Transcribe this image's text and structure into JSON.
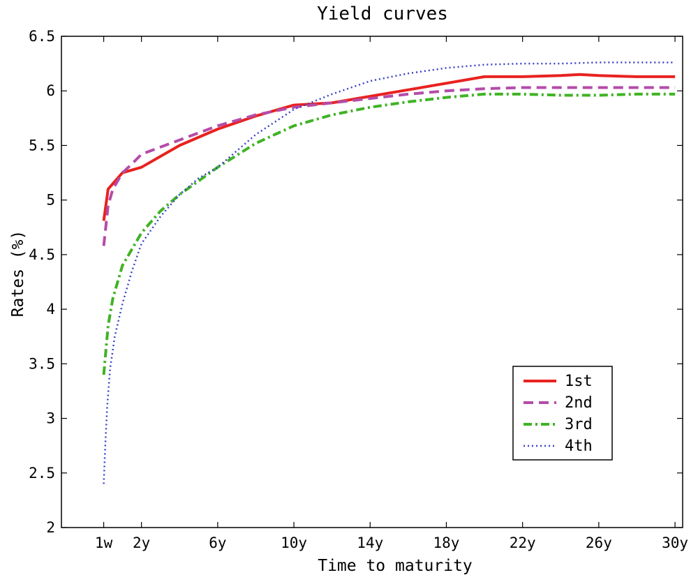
{
  "chart_data": {
    "type": "line",
    "title": "Yield curves",
    "xlabel": "Time to maturity",
    "ylabel": "Rates (%)",
    "xlim": [
      -2.2,
      30.4
    ],
    "ylim": [
      2,
      6.5
    ],
    "xticks": [
      {
        "value": 0.019,
        "label": "1w"
      },
      {
        "value": 2,
        "label": "2y"
      },
      {
        "value": 6,
        "label": "6y"
      },
      {
        "value": 10,
        "label": "10y"
      },
      {
        "value": 14,
        "label": "14y"
      },
      {
        "value": 18,
        "label": "18y"
      },
      {
        "value": 22,
        "label": "22y"
      },
      {
        "value": 26,
        "label": "26y"
      },
      {
        "value": 30,
        "label": "30y"
      }
    ],
    "yticks": [
      {
        "value": 2,
        "label": "2"
      },
      {
        "value": 2.5,
        "label": "2.5"
      },
      {
        "value": 3,
        "label": "3"
      },
      {
        "value": 3.5,
        "label": "3.5"
      },
      {
        "value": 4,
        "label": "4"
      },
      {
        "value": 4.5,
        "label": "4.5"
      },
      {
        "value": 5,
        "label": "5"
      },
      {
        "value": 5.5,
        "label": "5.5"
      },
      {
        "value": 6,
        "label": "6"
      },
      {
        "value": 6.5,
        "label": "6.5"
      }
    ],
    "grid": false,
    "legend_position": "bottom-right",
    "series": [
      {
        "name": "1st",
        "color": "#e8221f",
        "style": "solid",
        "x": [
          0.019,
          0.25,
          0.5,
          1,
          2,
          4,
          6,
          8,
          10,
          12,
          14,
          16,
          18,
          20,
          22,
          24,
          25,
          26,
          28,
          30
        ],
        "y": [
          4.81,
          5.1,
          5.15,
          5.25,
          5.3,
          5.5,
          5.65,
          5.77,
          5.87,
          5.89,
          5.95,
          6.01,
          6.07,
          6.13,
          6.13,
          6.14,
          6.15,
          6.14,
          6.13,
          6.13
        ]
      },
      {
        "name": "2nd",
        "color": "#b44ca9",
        "style": "dashed",
        "x": [
          0.019,
          0.25,
          0.5,
          1,
          1.5,
          2,
          4,
          6,
          8,
          10,
          12,
          14,
          16,
          18,
          20,
          22,
          24,
          26,
          28,
          30
        ],
        "y": [
          4.58,
          4.95,
          5.1,
          5.25,
          5.33,
          5.42,
          5.55,
          5.68,
          5.78,
          5.85,
          5.89,
          5.93,
          5.97,
          6.0,
          6.02,
          6.03,
          6.03,
          6.03,
          6.03,
          6.03
        ]
      },
      {
        "name": "3rd",
        "color": "#3fb324",
        "style": "dashdot",
        "x": [
          0.019,
          0.25,
          0.5,
          1,
          2,
          3,
          4,
          6,
          8,
          10,
          12,
          14,
          16,
          18,
          20,
          22,
          24,
          26,
          28,
          30
        ],
        "y": [
          3.4,
          3.85,
          4.1,
          4.4,
          4.7,
          4.9,
          5.05,
          5.3,
          5.52,
          5.68,
          5.78,
          5.85,
          5.9,
          5.94,
          5.97,
          5.97,
          5.96,
          5.96,
          5.97,
          5.97
        ]
      },
      {
        "name": "4th",
        "color": "#3a42c4",
        "style": "dotted",
        "x": [
          0.019,
          0.1,
          0.2,
          0.35,
          0.6,
          1,
          1.5,
          2,
          3,
          4,
          5,
          6,
          8,
          10,
          12,
          14,
          16,
          18,
          20,
          22,
          24,
          26,
          28,
          30
        ],
        "y": [
          2.4,
          2.75,
          3.1,
          3.45,
          3.75,
          4.05,
          4.35,
          4.6,
          4.85,
          5.05,
          5.2,
          5.3,
          5.6,
          5.83,
          5.97,
          6.09,
          6.16,
          6.21,
          6.24,
          6.25,
          6.25,
          6.26,
          6.26,
          6.26
        ]
      }
    ]
  }
}
